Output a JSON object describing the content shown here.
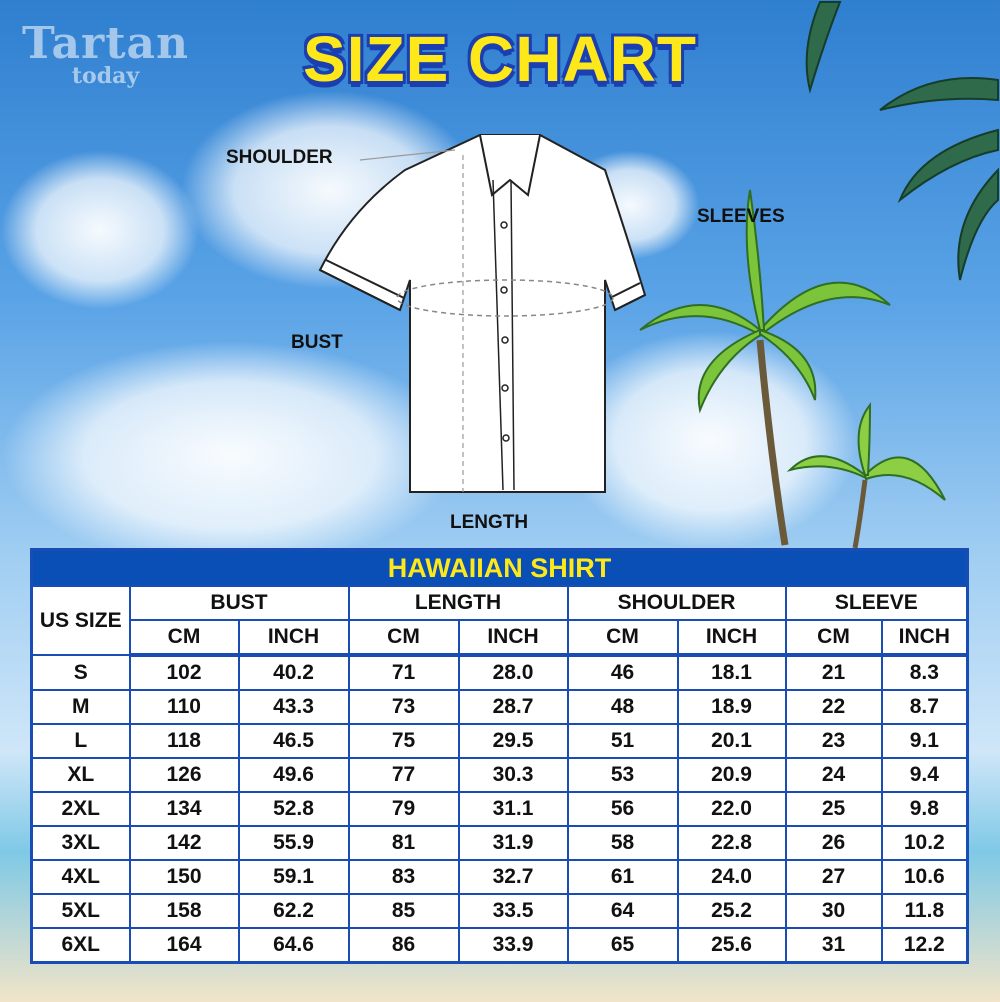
{
  "watermark": {
    "line1": "Tartan",
    "line2": "today"
  },
  "title": "SIZE CHART",
  "diagram_labels": {
    "shoulder": "SHOULDER",
    "sleeves": "SLEEVES",
    "bust": "BUST",
    "length": "LENGTH"
  },
  "table": {
    "caption": "HAWAIIAN SHIRT",
    "size_header": "US SIZE",
    "groups": [
      "BUST",
      "LENGTH",
      "SHOULDER",
      "SLEEVE"
    ],
    "units": [
      "CM",
      "INCH"
    ],
    "rows": [
      [
        "S",
        "102",
        "40.2",
        "71",
        "28.0",
        "46",
        "18.1",
        "21",
        "8.3"
      ],
      [
        "M",
        "110",
        "43.3",
        "73",
        "28.7",
        "48",
        "18.9",
        "22",
        "8.7"
      ],
      [
        "L",
        "118",
        "46.5",
        "75",
        "29.5",
        "51",
        "20.1",
        "23",
        "9.1"
      ],
      [
        "XL",
        "126",
        "49.6",
        "77",
        "30.3",
        "53",
        "20.9",
        "24",
        "9.4"
      ],
      [
        "2XL",
        "134",
        "52.8",
        "79",
        "31.1",
        "56",
        "22.0",
        "25",
        "9.8"
      ],
      [
        "3XL",
        "142",
        "55.9",
        "81",
        "31.9",
        "58",
        "22.8",
        "26",
        "10.2"
      ],
      [
        "4XL",
        "150",
        "59.1",
        "83",
        "32.7",
        "61",
        "24.0",
        "27",
        "10.6"
      ],
      [
        "5XL",
        "158",
        "62.2",
        "85",
        "33.5",
        "64",
        "25.2",
        "30",
        "11.8"
      ],
      [
        "6XL",
        "164",
        "64.6",
        "86",
        "33.9",
        "65",
        "25.6",
        "31",
        "12.2"
      ]
    ]
  },
  "colors": {
    "header_blue": "#0a4fb5",
    "title_yellow": "#ffe81a",
    "border_blue": "#1a4db3"
  }
}
